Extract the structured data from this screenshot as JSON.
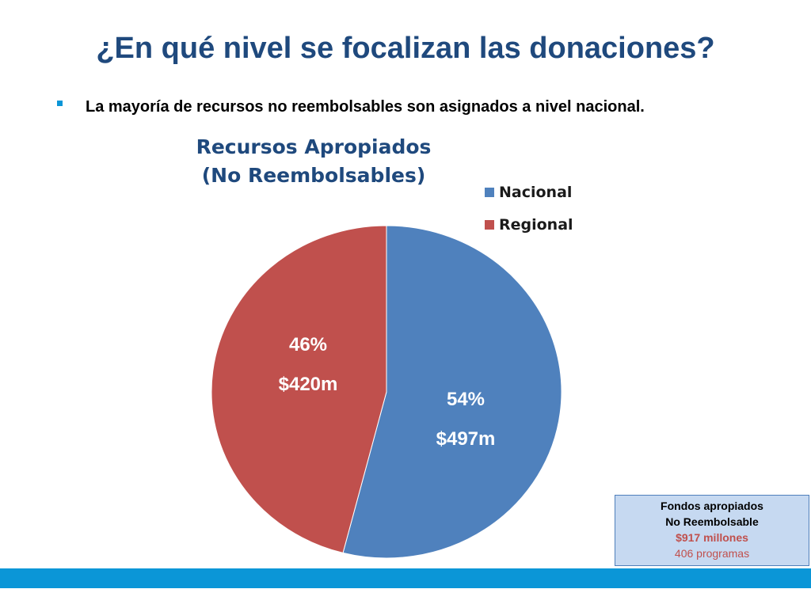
{
  "slide": {
    "title": "¿En qué nivel se focalizan las donaciones?",
    "bullet": "La mayoría de recursos no reembolsables son asignados a nivel nacional."
  },
  "chart_data": {
    "type": "pie",
    "title_line1": "Recursos Apropiados",
    "title_line2": "(No Reembolsables)",
    "legend_position": "top-right",
    "slices": [
      {
        "name": "Nacional",
        "percent": 54,
        "percent_label": "54%",
        "value": 497,
        "value_label": "$497m",
        "color": "#4f81bd"
      },
      {
        "name": "Regional",
        "percent": 46,
        "percent_label": "46%",
        "value": 420,
        "value_label": "$420m",
        "color": "#c0504d"
      }
    ]
  },
  "info_box": {
    "line1": "Fondos apropiados",
    "line2": "No Reembolsable",
    "line3": "$917 millones",
    "line4": "406 programas"
  },
  "colors": {
    "title": "#1f497d",
    "accent_band": "#0b96d7",
    "box_bg": "#c6d9f1",
    "box_border": "#4f7fbb"
  }
}
